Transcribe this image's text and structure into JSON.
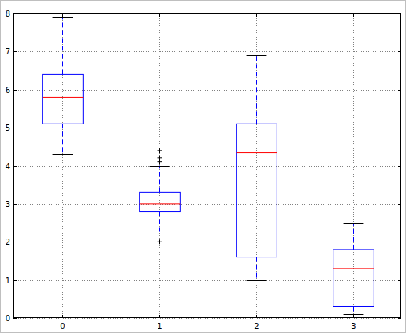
{
  "chart_data": {
    "type": "box",
    "categories": [
      "0",
      "1",
      "2",
      "3"
    ],
    "boxes": [
      {
        "whislo": 4.3,
        "q1": 5.1,
        "med": 5.8,
        "q3": 6.4,
        "whishi": 7.9,
        "fliers": []
      },
      {
        "whislo": 2.2,
        "q1": 2.8,
        "med": 3.0,
        "q3": 3.3,
        "whishi": 4.0,
        "fliers": [
          2.0,
          4.1,
          4.2,
          4.4
        ]
      },
      {
        "whislo": 1.0,
        "q1": 1.6,
        "med": 4.35,
        "q3": 5.1,
        "whishi": 6.9,
        "fliers": []
      },
      {
        "whislo": 0.1,
        "q1": 0.3,
        "med": 1.3,
        "q3": 1.8,
        "whishi": 2.5,
        "fliers": []
      }
    ],
    "color": "#0000ff",
    "ylim": [
      0,
      8
    ],
    "yticks": [
      0,
      1,
      2,
      3,
      4,
      5,
      6,
      7,
      8
    ],
    "grid": true
  }
}
